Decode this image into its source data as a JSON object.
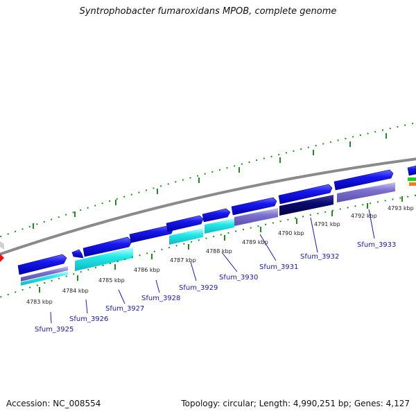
{
  "title": "Syntrophobacter fumaroxidans MPOB, complete genome",
  "footer": {
    "accession": "Accession: NC_008554",
    "summary": "Topology: circular; Length: 4,990,251 bp; Genes: 4,127"
  },
  "scale_labels": [
    "4783 kbp",
    "4784 kbp",
    "4785 kbp",
    "4786 kbp",
    "4787 kbp",
    "4788 kbp",
    "4789 kbp",
    "4790 kbp",
    "4791 kbp",
    "4792 kbp",
    "4793 kbp"
  ],
  "gene_labels": [
    "Sfum_3925",
    "Sfum_3926",
    "Sfum_3927",
    "Sfum_3928",
    "Sfum_3929",
    "Sfum_3930",
    "Sfum_3931",
    "Sfum_3932",
    "Sfum_3933"
  ],
  "colors": {
    "backbone": "#808080",
    "tick": "#1f8a1f",
    "forward_gene": "#1010e0",
    "cyan_feature": "#22e8e8",
    "purple_feature": "#7b6fd0",
    "navy_feature": "#0a0a70",
    "label_blue": "#1a1aa0"
  }
}
